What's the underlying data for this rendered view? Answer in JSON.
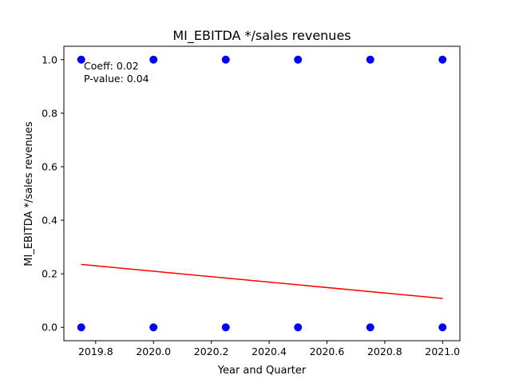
{
  "chart_data": {
    "type": "scatter",
    "title": "MI_EBITDA */sales revenues",
    "xlabel": "Year and Quarter",
    "ylabel": "MI_EBITDA */sales revenues",
    "xlim": [
      2019.69,
      2021.06
    ],
    "ylim": [
      -0.05,
      1.05
    ],
    "x_ticks": [
      2019.8,
      2020.0,
      2020.2,
      2020.4,
      2020.6,
      2020.8,
      2021.0
    ],
    "x_tick_labels": [
      "2019.8",
      "2020.0",
      "2020.2",
      "2020.4",
      "2020.6",
      "2020.8",
      "2021.0"
    ],
    "y_ticks": [
      0.0,
      0.2,
      0.4,
      0.6,
      0.8,
      1.0
    ],
    "y_tick_labels": [
      "0.0",
      "0.2",
      "0.4",
      "0.6",
      "0.8",
      "1.0"
    ],
    "grid": false,
    "points": [
      {
        "x": 2019.75,
        "y": 1.0
      },
      {
        "x": 2019.75,
        "y": 0.0
      },
      {
        "x": 2020.0,
        "y": 1.0
      },
      {
        "x": 2020.0,
        "y": 0.0
      },
      {
        "x": 2020.25,
        "y": 1.0
      },
      {
        "x": 2020.25,
        "y": 0.0
      },
      {
        "x": 2020.5,
        "y": 1.0
      },
      {
        "x": 2020.5,
        "y": 0.0
      },
      {
        "x": 2020.75,
        "y": 1.0
      },
      {
        "x": 2020.75,
        "y": 0.0
      },
      {
        "x": 2021.0,
        "y": 1.0
      },
      {
        "x": 2021.0,
        "y": 0.0
      }
    ],
    "point_color": "#0000ff",
    "trend_line": {
      "x": [
        2019.75,
        2021.0
      ],
      "y": [
        0.235,
        0.108
      ],
      "color": "#ff0000"
    },
    "annotations": [
      "Coeff: 0.02",
      "P-value: 0.04"
    ]
  }
}
